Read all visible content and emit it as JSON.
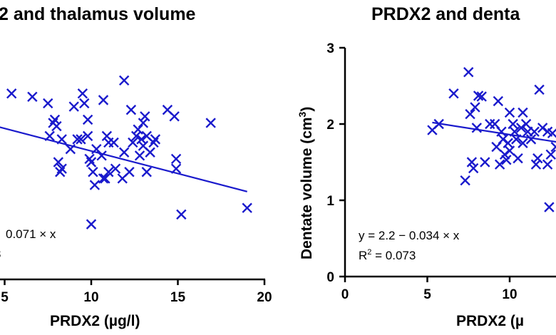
{
  "colors": {
    "series": "#1a1acc",
    "axis": "#000000",
    "background": "#ffffff"
  },
  "chart_data": [
    {
      "type": "scatter",
      "title": "2 and thalamus volume",
      "xlabel": "PRDX2 (µg/l)",
      "ylabel": "",
      "xlim": [
        4.2,
        20
      ],
      "ylim": [
        7.7,
        11.2
      ],
      "x_ticks": [
        5,
        10,
        15,
        20
      ],
      "x_tick_labels": [
        "5",
        "10",
        "15",
        "20"
      ],
      "equation_text": "0.071 × x",
      "r2_text": "3",
      "fit": {
        "x": [
          4.5,
          19.0
        ],
        "y": [
          10.0,
          9.0
        ]
      },
      "points": [
        [
          4.5,
          10.1
        ],
        [
          5.4,
          10.5
        ],
        [
          6.6,
          10.45
        ],
        [
          7.5,
          10.35
        ],
        [
          7.8,
          10.05
        ],
        [
          7.9,
          10.1
        ],
        [
          8.0,
          10.0
        ],
        [
          7.6,
          9.85
        ],
        [
          8.3,
          9.8
        ],
        [
          8.1,
          9.45
        ],
        [
          8.3,
          9.35
        ],
        [
          8.2,
          9.3
        ],
        [
          8.8,
          9.65
        ],
        [
          9.0,
          10.3
        ],
        [
          9.2,
          9.8
        ],
        [
          9.4,
          9.8
        ],
        [
          9.5,
          10.5
        ],
        [
          9.6,
          10.35
        ],
        [
          9.8,
          9.85
        ],
        [
          9.8,
          10.1
        ],
        [
          9.9,
          9.5
        ],
        [
          10.0,
          9.45
        ],
        [
          10.1,
          9.3
        ],
        [
          10.3,
          9.65
        ],
        [
          10.2,
          9.1
        ],
        [
          10.0,
          8.5
        ],
        [
          10.6,
          9.55
        ],
        [
          10.7,
          9.2
        ],
        [
          10.7,
          10.4
        ],
        [
          10.8,
          9.2
        ],
        [
          10.9,
          9.85
        ],
        [
          11.0,
          9.75
        ],
        [
          11.0,
          9.3
        ],
        [
          11.3,
          9.75
        ],
        [
          11.4,
          9.35
        ],
        [
          11.8,
          9.2
        ],
        [
          11.9,
          10.7
        ],
        [
          11.9,
          9.6
        ],
        [
          12.2,
          9.3
        ],
        [
          12.3,
          10.25
        ],
        [
          12.4,
          9.75
        ],
        [
          12.6,
          9.85
        ],
        [
          12.7,
          9.95
        ],
        [
          12.8,
          9.55
        ],
        [
          12.9,
          9.8
        ],
        [
          13.0,
          9.7
        ],
        [
          13.0,
          10.05
        ],
        [
          13.1,
          10.15
        ],
        [
          13.2,
          9.85
        ],
        [
          13.2,
          9.3
        ],
        [
          13.4,
          9.6
        ],
        [
          13.6,
          9.75
        ],
        [
          13.7,
          9.8
        ],
        [
          14.4,
          10.25
        ],
        [
          14.8,
          10.15
        ],
        [
          14.9,
          9.5
        ],
        [
          14.9,
          9.35
        ],
        [
          15.2,
          8.65
        ],
        [
          16.9,
          10.05
        ],
        [
          19.0,
          8.75
        ]
      ]
    },
    {
      "type": "scatter",
      "title": "PRDX2 and denta",
      "xlabel": "PRDX2 (µ",
      "ylabel": "Dentate volume (cm3)",
      "ylabel_parts": {
        "main": "Dentate volume (cm",
        "sup": "3",
        "end": ")"
      },
      "xlim": [
        0,
        12.6
      ],
      "ylim": [
        0,
        3
      ],
      "x_ticks": [
        0,
        5,
        10
      ],
      "x_tick_labels": [
        "0",
        "5",
        "10"
      ],
      "y_ticks": [
        0,
        1,
        2,
        3
      ],
      "y_tick_labels": [
        "0",
        "1",
        "2",
        "3"
      ],
      "equation_text": "y = 2.2 − 0.034 × x",
      "r2_parts": {
        "main": "R",
        "sup": "2",
        "end": " = 0.073"
      },
      "fit": {
        "x": [
          5.3,
          13.0
        ],
        "y": [
          2.02,
          1.76
        ]
      },
      "points": [
        [
          5.3,
          1.92
        ],
        [
          5.7,
          2.0
        ],
        [
          6.6,
          2.4
        ],
        [
          7.3,
          1.26
        ],
        [
          7.5,
          2.68
        ],
        [
          7.6,
          2.13
        ],
        [
          7.7,
          1.5
        ],
        [
          7.8,
          1.42
        ],
        [
          7.9,
          2.22
        ],
        [
          8.0,
          1.95
        ],
        [
          8.1,
          2.37
        ],
        [
          8.3,
          2.36
        ],
        [
          8.5,
          1.5
        ],
        [
          8.8,
          2.0
        ],
        [
          9.1,
          2.0
        ],
        [
          9.2,
          1.7
        ],
        [
          9.3,
          2.3
        ],
        [
          9.4,
          1.47
        ],
        [
          9.5,
          1.9
        ],
        [
          9.6,
          1.8
        ],
        [
          9.7,
          1.6
        ],
        [
          9.8,
          1.53
        ],
        [
          9.9,
          1.75
        ],
        [
          10.0,
          2.15
        ],
        [
          10.0,
          1.65
        ],
        [
          10.2,
          2.0
        ],
        [
          10.3,
          1.9
        ],
        [
          10.4,
          1.8
        ],
        [
          10.5,
          1.55
        ],
        [
          10.7,
          1.95
        ],
        [
          10.8,
          2.15
        ],
        [
          10.8,
          1.75
        ],
        [
          11.0,
          2.0
        ],
        [
          11.1,
          1.9
        ],
        [
          11.3,
          1.8
        ],
        [
          11.5,
          1.9
        ],
        [
          11.6,
          1.47
        ],
        [
          11.8,
          2.45
        ],
        [
          12.0,
          1.95
        ],
        [
          12.3,
          1.9
        ],
        [
          12.5,
          1.6
        ],
        [
          12.4,
          0.91
        ],
        [
          12.6,
          1.88
        ],
        [
          12.8,
          1.7
        ],
        [
          12.3,
          1.47
        ],
        [
          11.7,
          1.55
        ]
      ]
    }
  ]
}
